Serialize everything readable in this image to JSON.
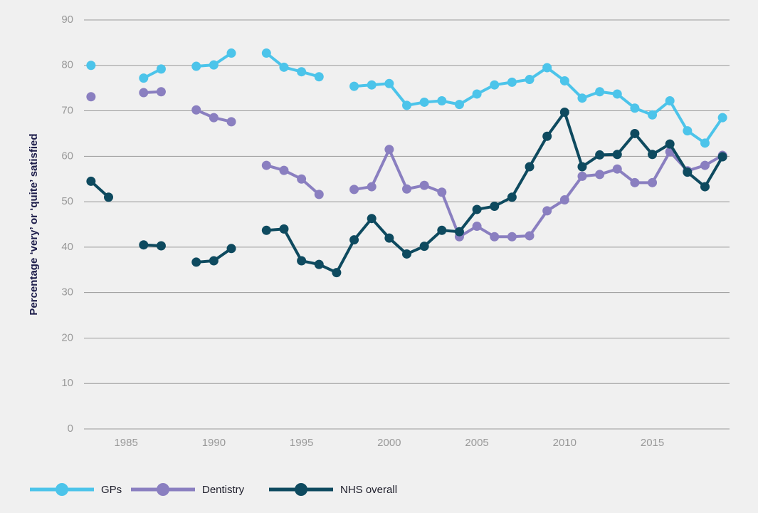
{
  "chart_data": {
    "type": "line",
    "ylabel": "Percentage ‘very’ or ‘quite’ satisfied",
    "x": [
      1983,
      1984,
      1985,
      1986,
      1987,
      1988,
      1989,
      1990,
      1991,
      1992,
      1993,
      1994,
      1995,
      1996,
      1997,
      1998,
      1999,
      2000,
      2001,
      2002,
      2003,
      2004,
      2005,
      2006,
      2007,
      2008,
      2009,
      2010,
      2011,
      2012,
      2013,
      2014,
      2015,
      2016,
      2017,
      2018,
      2019
    ],
    "series": [
      {
        "name": "GPs",
        "color": "#4cc4ea",
        "values": [
          80,
          null,
          null,
          77.2,
          79.2,
          null,
          79.8,
          80.1,
          82.7,
          null,
          82.7,
          79.6,
          78.6,
          77.5,
          null,
          75.4,
          75.7,
          76,
          71.2,
          71.9,
          72.2,
          71.4,
          73.7,
          75.7,
          76.3,
          76.9,
          79.5,
          76.6,
          72.8,
          74.2,
          73.7,
          70.6,
          69.1,
          72.2,
          65.6,
          62.9,
          68.5
        ]
      },
      {
        "name": "Dentistry",
        "color": "#8a7fc0",
        "values": [
          73.1,
          null,
          null,
          74,
          74.2,
          null,
          70.2,
          68.5,
          67.6,
          null,
          58,
          56.9,
          55,
          51.6,
          null,
          52.7,
          53.3,
          61.5,
          52.8,
          53.6,
          52.1,
          42.3,
          44.6,
          42.3,
          42.3,
          42.5,
          48,
          50.4,
          55.6,
          56,
          57.2,
          54.2,
          54.2,
          61,
          56.8,
          58,
          60.2
        ]
      },
      {
        "name": "NHS overall",
        "color": "#0e4a5f",
        "values": [
          54.5,
          51,
          null,
          40.5,
          40.3,
          null,
          36.7,
          37,
          39.7,
          null,
          43.7,
          44,
          37,
          36.2,
          34.4,
          41.6,
          46.3,
          42,
          38.5,
          40.2,
          43.7,
          43.4,
          48.3,
          49,
          51,
          57.7,
          64.4,
          69.7,
          57.7,
          60.3,
          60.4,
          65,
          60.4,
          62.7,
          56.5,
          53.3,
          59.9
        ]
      }
    ],
    "xlim": [
      1982.6,
      2019.4
    ],
    "xticks": [
      1985,
      1990,
      1995,
      2000,
      2005,
      2010,
      2015
    ],
    "ylim": [
      0,
      90
    ],
    "yticks": [
      0,
      10,
      20,
      30,
      40,
      50,
      60,
      70,
      80,
      90
    ],
    "grid": true,
    "legend": "bottom"
  }
}
